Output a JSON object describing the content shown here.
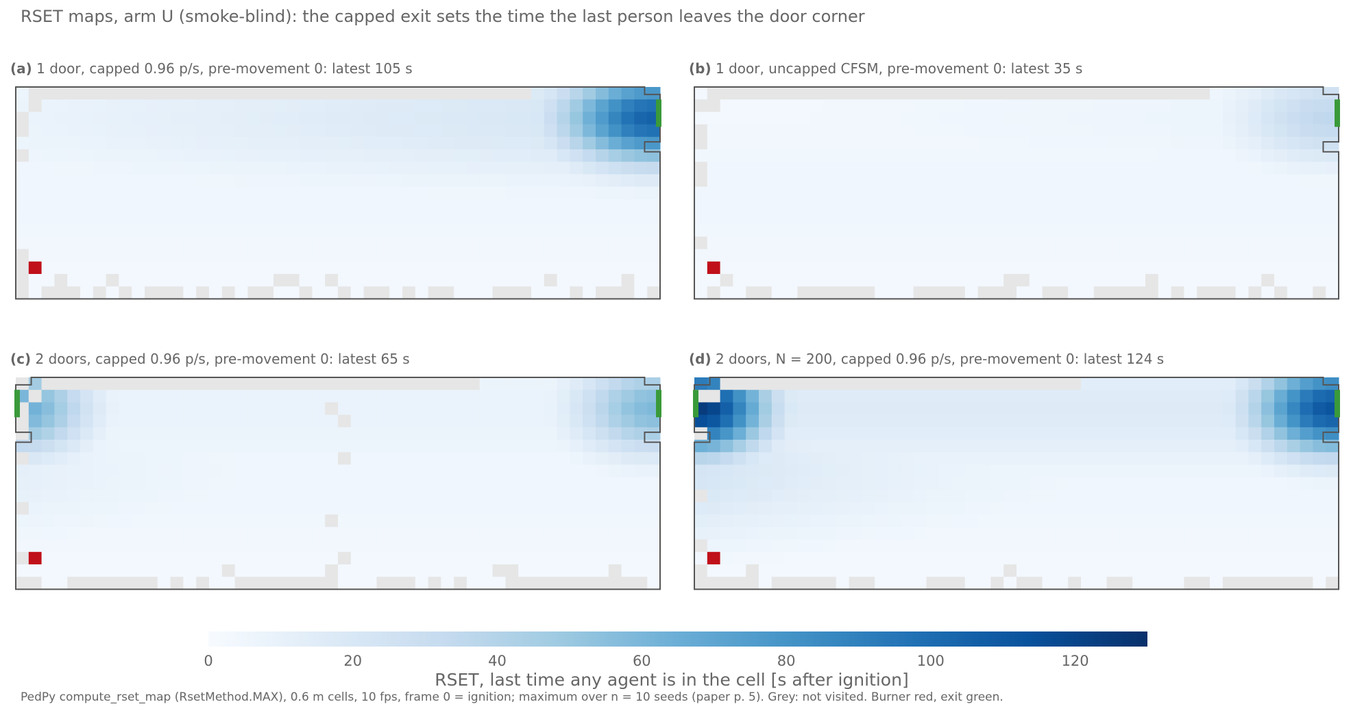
{
  "figure": {
    "title": "RSET maps, arm U (smoke-blind): the capped exit sets the time the last person leaves the door corner",
    "footnote": "PedPy compute_rset_map (RsetMethod.MAX), 0.6 m cells, 10 fps, frame 0 = ignition; maximum over n = 10 seeds (paper p. 5). Grey: not visited. Burner red, exit green."
  },
  "colors": {
    "not_visited": "#e6e6e6",
    "burner": "#c0101a",
    "exit": "#3a9a3a",
    "outline": "#555555",
    "colormap": "Blues"
  },
  "chart_data": [
    {
      "type": "heatmap",
      "panel_label": "(a)",
      "title": "1 door, capped 0.96 p/s, pre-movement 0: latest 105 s",
      "doors": [
        "right"
      ],
      "latest_rset_s": 105,
      "hotspots": [
        {
          "corner": "top-right",
          "peak_s": 105
        }
      ],
      "colorbar_range": [
        0,
        130
      ]
    },
    {
      "type": "heatmap",
      "panel_label": "(b)",
      "title": "1 door, uncapped CFSM, pre-movement 0: latest 35 s",
      "doors": [
        "right"
      ],
      "latest_rset_s": 35,
      "hotspots": [
        {
          "corner": "top-right",
          "peak_s": 35
        }
      ],
      "colorbar_range": [
        0,
        130
      ]
    },
    {
      "type": "heatmap",
      "panel_label": "(c)",
      "title": "2 doors, capped 0.96 p/s, pre-movement 0: latest 65 s",
      "doors": [
        "left",
        "right"
      ],
      "latest_rset_s": 65,
      "hotspots": [
        {
          "corner": "top-left",
          "peak_s": 62
        },
        {
          "corner": "top-right",
          "peak_s": 65
        }
      ],
      "colorbar_range": [
        0,
        130
      ]
    },
    {
      "type": "heatmap",
      "panel_label": "(d)",
      "title": "2 doors, N = 200, capped 0.96 p/s, pre-movement 0: latest 124 s",
      "doors": [
        "left",
        "right"
      ],
      "latest_rset_s": 124,
      "hotspots": [
        {
          "corner": "top-left",
          "peak_s": 124
        },
        {
          "corner": "top-right",
          "peak_s": 118
        }
      ],
      "colorbar_range": [
        0,
        130
      ]
    }
  ],
  "colorbar": {
    "vmin": 0,
    "vmax": 130,
    "ticks": [
      0,
      20,
      40,
      60,
      80,
      100,
      120
    ],
    "label": "RSET, last time any agent is in the cell [s after ignition]"
  }
}
